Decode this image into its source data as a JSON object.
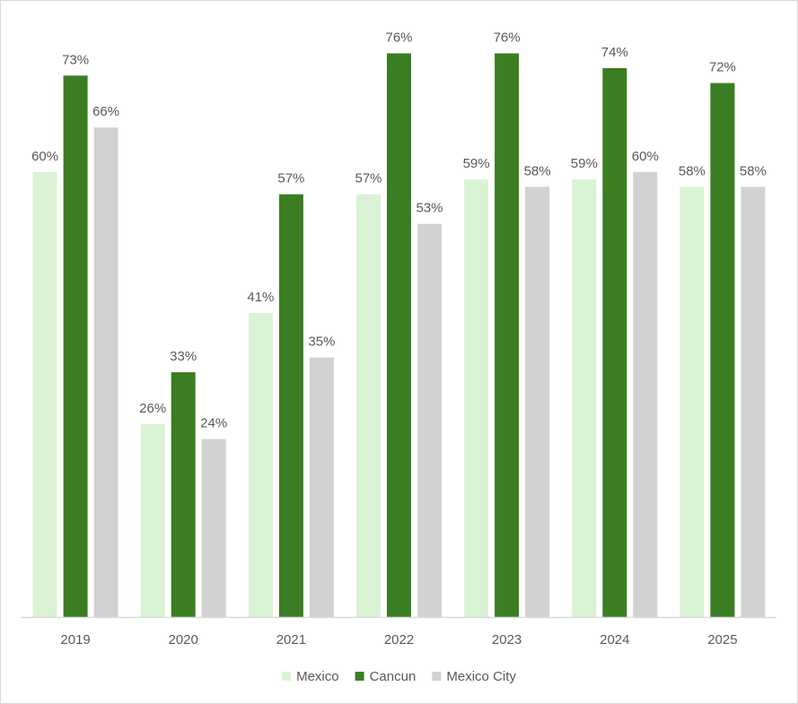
{
  "chart_data": {
    "type": "bar",
    "title": "",
    "xlabel": "",
    "ylabel": "",
    "ylim": [
      0,
      80
    ],
    "grid": false,
    "legend_position": "bottom",
    "categories": [
      "2019",
      "2020",
      "2021",
      "2022",
      "2023",
      "2024",
      "2025"
    ],
    "series": [
      {
        "name": "Mexico",
        "color": "#daf2d4",
        "values": [
          60,
          26,
          41,
          57,
          59,
          59,
          58
        ],
        "labels": [
          "60%",
          "26%",
          "41%",
          "57%",
          "59%",
          "59%",
          "58%"
        ]
      },
      {
        "name": "Cancun",
        "color": "#3b7d23",
        "values": [
          73,
          33,
          57,
          76,
          76,
          74,
          72
        ],
        "labels": [
          "73%",
          "33%",
          "57%",
          "76%",
          "76%",
          "74%",
          "72%"
        ]
      },
      {
        "name": "Mexico City",
        "color": "#d2d2d2",
        "values": [
          66,
          24,
          35,
          53,
          58,
          60,
          58
        ],
        "labels": [
          "66%",
          "24%",
          "35%",
          "53%",
          "58%",
          "60%",
          "58%"
        ]
      }
    ],
    "axis_color": "#d9d9d9",
    "text_color": "#595959"
  }
}
